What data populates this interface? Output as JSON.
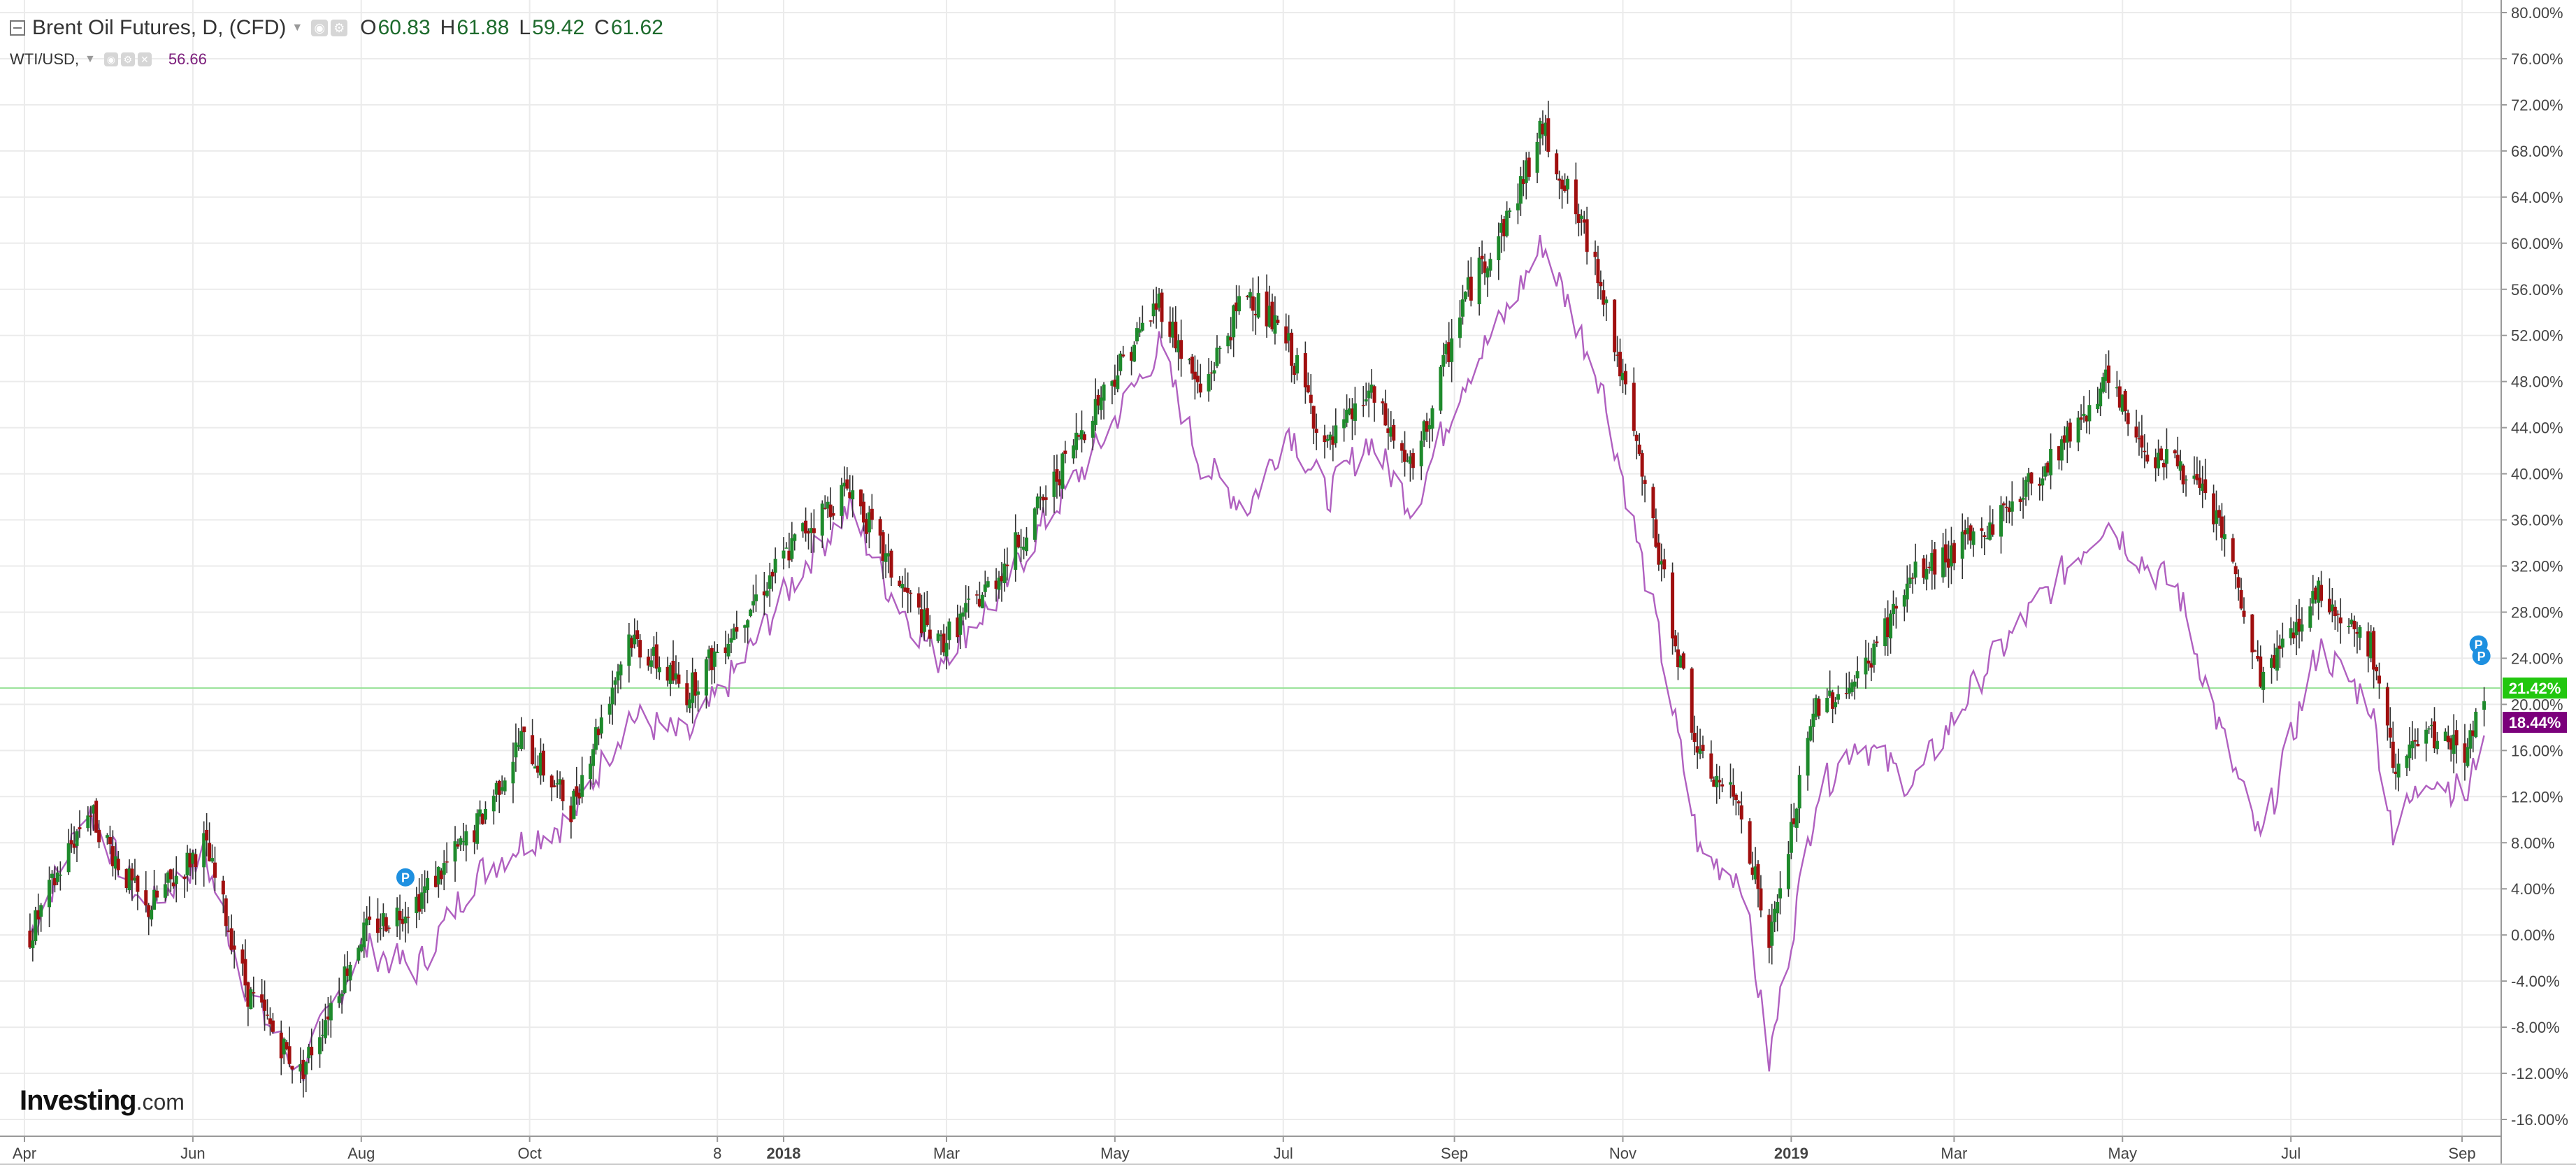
{
  "legend": {
    "main_title": "Brent Oil Futures, D, (CFD)",
    "o_label": "O",
    "o_value": "60.83",
    "h_label": "H",
    "h_value": "61.88",
    "l_label": "L",
    "l_value": "59.42",
    "c_label": "C",
    "c_value": "61.62",
    "sub_title": "WTI/USD,",
    "sub_value": "56.66"
  },
  "logo": {
    "brand": "Investing",
    "suffix": ".com"
  },
  "markers": {
    "p_label": "P"
  },
  "colors": {
    "up_candle": "#1e8a2c",
    "down_candle": "#a00f0f",
    "wti_line": "#b060c0",
    "brent_badge": "#22c70f",
    "wti_badge": "#7b007b",
    "baseline": "#9be39b",
    "marker": "#1e90e0",
    "grid": "#ebebeb"
  },
  "chart_data": {
    "type": "line",
    "y_unit": "%",
    "ylim": [
      -18,
      81
    ],
    "y_ticks": [
      "80.00%",
      "76.00%",
      "72.00%",
      "68.00%",
      "64.00%",
      "60.00%",
      "56.00%",
      "52.00%",
      "48.00%",
      "44.00%",
      "40.00%",
      "36.00%",
      "32.00%",
      "28.00%",
      "24.00%",
      "20.00%",
      "16.00%",
      "12.00%",
      "8.00%",
      "4.00%",
      "0.00%",
      "-4.00%",
      "-8.00%",
      "-12.00%",
      "-16.00%"
    ],
    "x_ticks": [
      "Apr",
      "Jun",
      "Aug",
      "Oct",
      "8",
      "2018",
      "Mar",
      "May",
      "Jul",
      "Sep",
      "Nov",
      "2019",
      "Mar",
      "May",
      "Jul",
      "Sep"
    ],
    "x_tick_bold": [
      "2018",
      "2019"
    ],
    "grid": true,
    "last_values": {
      "brent": "21.42%",
      "wti": "18.44%"
    },
    "series": [
      {
        "name": "Brent Oil Futures, D, (CFD)",
        "style": "candlestick",
        "dates": [
          "2017-04-03",
          "2017-04-24",
          "2017-05-15",
          "2017-06-05",
          "2017-06-21",
          "2017-07-10",
          "2017-08-01",
          "2017-08-21",
          "2017-09-11",
          "2017-09-28",
          "2017-10-16",
          "2017-11-06",
          "2017-11-27",
          "2017-12-18",
          "2018-01-08",
          "2018-01-25",
          "2018-02-08",
          "2018-02-26",
          "2018-03-19",
          "2018-04-06",
          "2018-04-24",
          "2018-05-17",
          "2018-06-01",
          "2018-06-18",
          "2018-07-03",
          "2018-07-17",
          "2018-08-01",
          "2018-08-17",
          "2018-09-04",
          "2018-09-20",
          "2018-10-03",
          "2018-10-24",
          "2018-11-13",
          "2018-11-29",
          "2018-12-14",
          "2018-12-24",
          "2019-01-10",
          "2019-01-25",
          "2019-02-14",
          "2019-03-12",
          "2019-04-01",
          "2019-04-25",
          "2019-05-10",
          "2019-05-21",
          "2019-06-05",
          "2019-06-20",
          "2019-07-11",
          "2019-07-30",
          "2019-08-07",
          "2019-08-20",
          "2019-09-03",
          "2019-09-09"
        ],
        "values": [
          0,
          11,
          2,
          8,
          -5,
          -12,
          0,
          3,
          9,
          17,
          11,
          26,
          21,
          28,
          35,
          39,
          32,
          25,
          31,
          38,
          46,
          55,
          47,
          56,
          51,
          42,
          47,
          40,
          55,
          62,
          70,
          57,
          34,
          15,
          11,
          -1,
          20,
          22,
          31,
          35,
          40,
          48,
          42,
          41,
          36,
          22,
          30,
          25,
          15,
          17,
          16,
          21.42
        ]
      },
      {
        "name": "WTI/USD",
        "style": "line",
        "dates": [
          "2017-04-03",
          "2017-04-24",
          "2017-05-15",
          "2017-06-05",
          "2017-06-21",
          "2017-07-10",
          "2017-08-01",
          "2017-08-21",
          "2017-09-11",
          "2017-09-28",
          "2017-10-16",
          "2017-11-06",
          "2017-11-27",
          "2017-12-18",
          "2018-01-08",
          "2018-01-25",
          "2018-02-08",
          "2018-02-26",
          "2018-03-19",
          "2018-04-06",
          "2018-04-24",
          "2018-05-17",
          "2018-06-01",
          "2018-06-18",
          "2018-07-03",
          "2018-07-17",
          "2018-08-01",
          "2018-08-17",
          "2018-09-04",
          "2018-09-20",
          "2018-10-03",
          "2018-10-24",
          "2018-11-13",
          "2018-11-29",
          "2018-12-14",
          "2018-12-24",
          "2019-01-10",
          "2019-01-25",
          "2019-02-14",
          "2019-03-12",
          "2019-04-01",
          "2019-04-25",
          "2019-05-10",
          "2019-05-21",
          "2019-06-05",
          "2019-06-20",
          "2019-07-11",
          "2019-07-30",
          "2019-08-07",
          "2019-08-20",
          "2019-09-03",
          "2019-09-09"
        ],
        "values": [
          0,
          11,
          2,
          7,
          -5,
          -12,
          -1,
          -3,
          5,
          8,
          10,
          19,
          17,
          24,
          32,
          37,
          30,
          24,
          29,
          36,
          42,
          51,
          41,
          37,
          44,
          38,
          43,
          37,
          48,
          54,
          60,
          48,
          27,
          7,
          5,
          -11,
          12,
          17,
          13,
          23,
          29,
          36,
          32,
          30,
          18,
          8,
          25,
          20,
          9,
          14,
          12,
          18.44
        ]
      }
    ]
  }
}
